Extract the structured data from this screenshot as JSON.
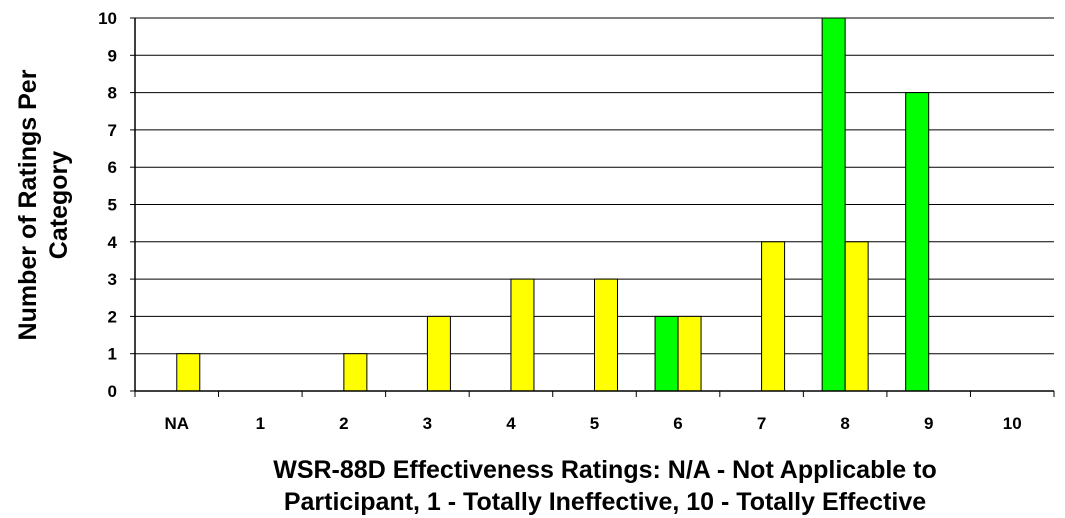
{
  "chart_data": {
    "type": "bar",
    "title": "",
    "xlabel_lines": [
      "WSR-88D Effectiveness Ratings: N/A - Not Applicable to",
      "Participant, 1 - Totally Ineffective, 10 - Totally Effective"
    ],
    "ylabel_lines": [
      "Number of Ratings Per",
      "Category"
    ],
    "categories": [
      "NA",
      "1",
      "2",
      "3",
      "4",
      "5",
      "6",
      "7",
      "8",
      "9",
      "10"
    ],
    "ylim": [
      0,
      10
    ],
    "yticks": [
      0,
      1,
      2,
      3,
      4,
      5,
      6,
      7,
      8,
      9,
      10
    ],
    "grid": true,
    "legend": "none",
    "series": [
      {
        "color": "#00ff00",
        "values": [
          0,
          0,
          0,
          0,
          0,
          0,
          2,
          0,
          10,
          8,
          0
        ]
      },
      {
        "color": "#ffff00",
        "values": [
          1,
          0,
          1,
          2,
          3,
          3,
          2,
          4,
          4,
          0,
          0
        ]
      }
    ]
  }
}
